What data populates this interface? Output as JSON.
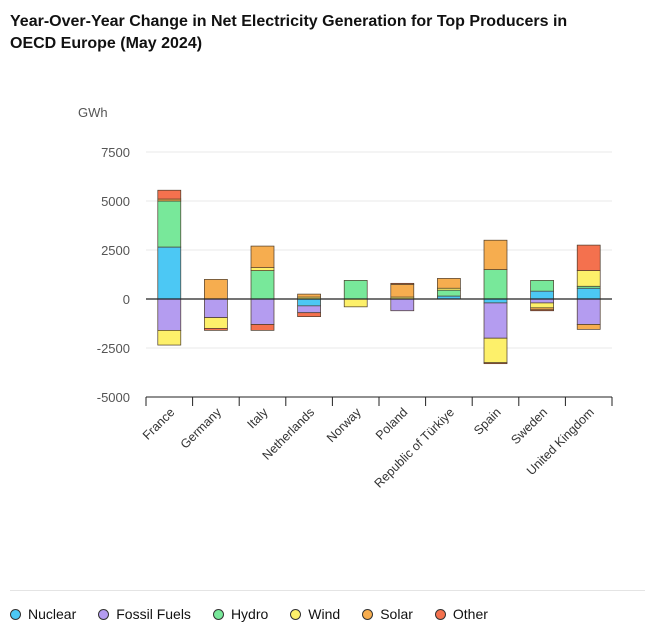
{
  "title": "Year-Over-Year Change in Net Electricity Generation for Top Producers in OECD Europe (May 2024)",
  "chart_data": {
    "type": "bar",
    "stacked": true,
    "title": "Year-Over-Year Change in Net Electricity Generation for Top Producers in OECD Europe (May 2024)",
    "ylabel": "GWh",
    "xlabel": "",
    "ylim": [
      -5000,
      7500
    ],
    "yticks": [
      7500,
      5000,
      2500,
      0,
      -2500,
      -5000
    ],
    "grid": true,
    "legend": "bottom",
    "categories": [
      "France",
      "Germany",
      "Italy",
      "Netherlands",
      "Norway",
      "Poland",
      "Republic of Türkiye",
      "Spain",
      "Sweden",
      "United Kingdom"
    ],
    "series": [
      {
        "name": "Nuclear",
        "color": "#4cc8f4",
        "values": [
          2650,
          0,
          0,
          -350,
          0,
          0,
          150,
          -200,
          400,
          550
        ]
      },
      {
        "name": "Fossil Fuels",
        "color": "#b49cf0",
        "values": [
          -1600,
          -950,
          -1300,
          -350,
          0,
          -600,
          0,
          -1800,
          -200,
          -1300
        ]
      },
      {
        "name": "Hydro",
        "color": "#78e89a",
        "values": [
          2350,
          0,
          1450,
          0,
          950,
          0,
          300,
          1500,
          550,
          100
        ]
      },
      {
        "name": "Wind",
        "color": "#fdf06a",
        "values": [
          -750,
          -550,
          150,
          100,
          -400,
          100,
          100,
          -1250,
          -250,
          800
        ]
      },
      {
        "name": "Solar",
        "color": "#f6ad4f",
        "values": [
          100,
          1000,
          1100,
          150,
          0,
          650,
          500,
          1500,
          -100,
          -250
        ]
      },
      {
        "name": "Other",
        "color": "#f4714e",
        "values": [
          450,
          -100,
          -300,
          -200,
          0,
          50,
          0,
          -50,
          -50,
          1300
        ]
      }
    ]
  }
}
